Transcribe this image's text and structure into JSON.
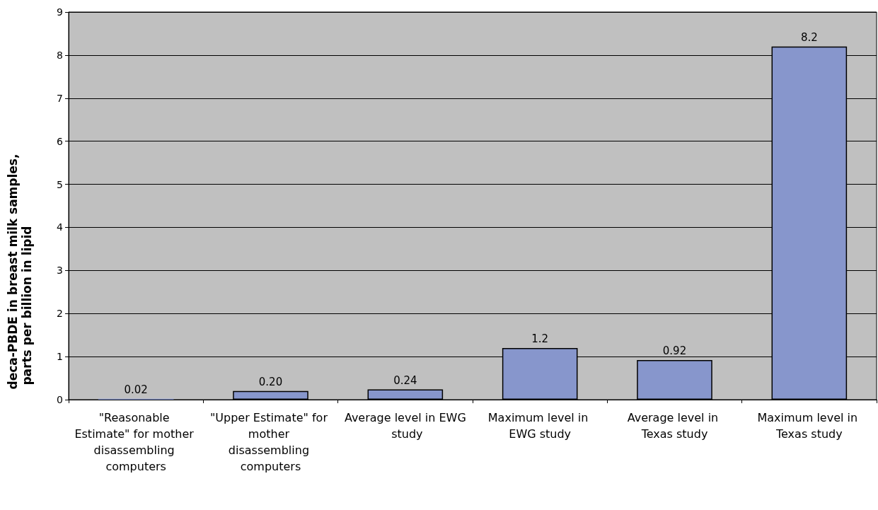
{
  "chart_data": {
    "type": "bar",
    "ylabel": "deca-PBDE in breast milk samples, parts per billion in lipid",
    "categories": [
      "\"Reasonable Estimate\" for mother disassembling computers",
      "\"Upper Estimate\" for mother disassembling computers",
      "Average level in EWG study",
      "Maximum level in EWG study",
      "Average level in Texas study",
      "Maximum level in Texas study"
    ],
    "values": [
      0.02,
      0.2,
      0.24,
      1.2,
      0.92,
      8.2
    ],
    "value_labels": [
      "0.02",
      "0.20",
      "0.24",
      "1.2",
      "0.92",
      "8.2"
    ],
    "color": "#8796cc",
    "ylim": [
      0,
      9
    ],
    "yticks": [
      0,
      1,
      2,
      3,
      4,
      5,
      6,
      7,
      8,
      9
    ],
    "grid": "y"
  }
}
